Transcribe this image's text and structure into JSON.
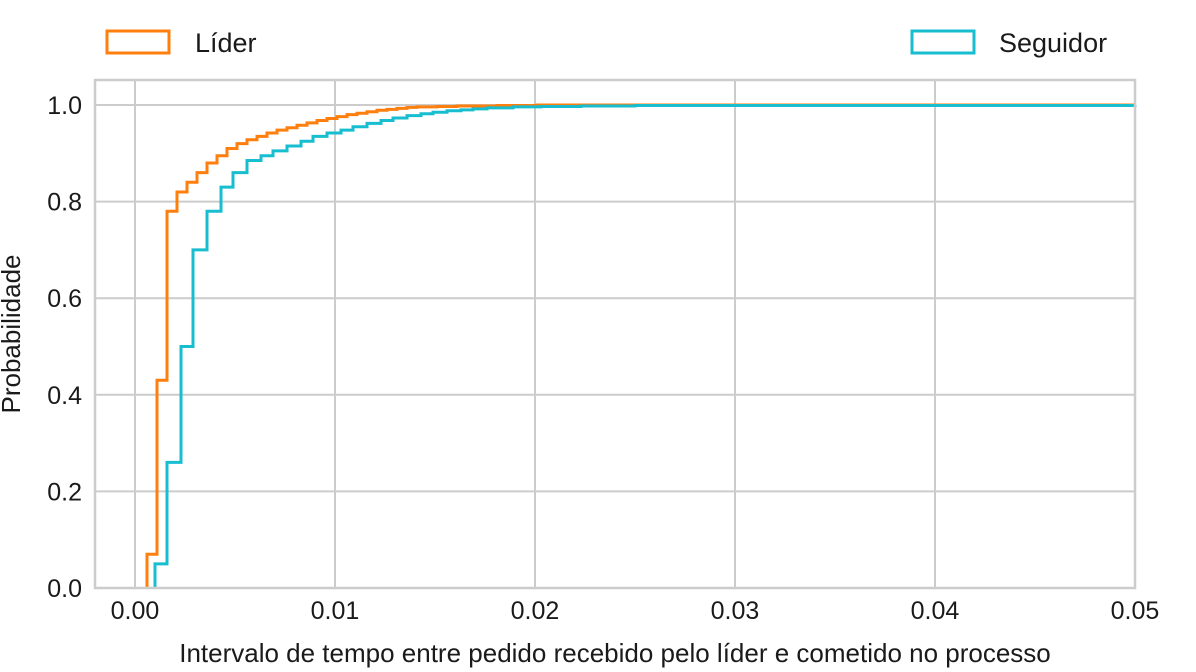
{
  "chart_data": {
    "type": "line",
    "step": true,
    "xlabel": "Intervalo de tempo entre pedido recebido pelo líder e cometido no processo",
    "ylabel": "Probabilidade",
    "xlim": [
      0.0,
      0.05
    ],
    "ylim": [
      0.0,
      1.0
    ],
    "xticks": [
      "0.00",
      "0.01",
      "0.02",
      "0.03",
      "0.04",
      "0.05"
    ],
    "yticks": [
      "0.0",
      "0.2",
      "0.4",
      "0.6",
      "0.8",
      "1.0"
    ],
    "grid": true,
    "legend_position": "top, outside plot",
    "series": [
      {
        "name": "Líder",
        "color": "#ff7f0e",
        "x": [
          0.0006,
          0.0011,
          0.0016,
          0.0021,
          0.0026,
          0.0031,
          0.0036,
          0.0041,
          0.0046,
          0.0051,
          0.0056,
          0.0061,
          0.0066,
          0.0071,
          0.0076,
          0.0081,
          0.0086,
          0.0091,
          0.0096,
          0.0101,
          0.0106,
          0.0111,
          0.0116,
          0.0121,
          0.0126,
          0.0131,
          0.0136,
          0.0141,
          0.0151,
          0.0161,
          0.0181,
          0.0201,
          0.05
        ],
        "y": [
          0.07,
          0.43,
          0.78,
          0.82,
          0.84,
          0.86,
          0.88,
          0.895,
          0.91,
          0.92,
          0.928,
          0.935,
          0.942,
          0.948,
          0.953,
          0.958,
          0.963,
          0.968,
          0.972,
          0.976,
          0.98,
          0.983,
          0.986,
          0.989,
          0.991,
          0.993,
          0.995,
          0.996,
          0.997,
          0.998,
          0.999,
          1.0,
          1.0
        ]
      },
      {
        "name": "Seguidor",
        "color": "#17becf",
        "x": [
          0.001,
          0.0016,
          0.0023,
          0.0029,
          0.0036,
          0.0043,
          0.0049,
          0.0056,
          0.0063,
          0.0069,
          0.0076,
          0.0083,
          0.0089,
          0.0096,
          0.0103,
          0.0109,
          0.0116,
          0.0123,
          0.0129,
          0.0136,
          0.0143,
          0.0149,
          0.0156,
          0.0163,
          0.0169,
          0.0176,
          0.0189,
          0.0203,
          0.0223,
          0.025,
          0.05
        ],
        "y": [
          0.05,
          0.26,
          0.5,
          0.7,
          0.78,
          0.83,
          0.86,
          0.885,
          0.895,
          0.905,
          0.915,
          0.925,
          0.935,
          0.942,
          0.948,
          0.955,
          0.962,
          0.968,
          0.973,
          0.978,
          0.982,
          0.985,
          0.988,
          0.99,
          0.992,
          0.994,
          0.996,
          0.997,
          0.998,
          0.999,
          1.0
        ]
      }
    ]
  }
}
